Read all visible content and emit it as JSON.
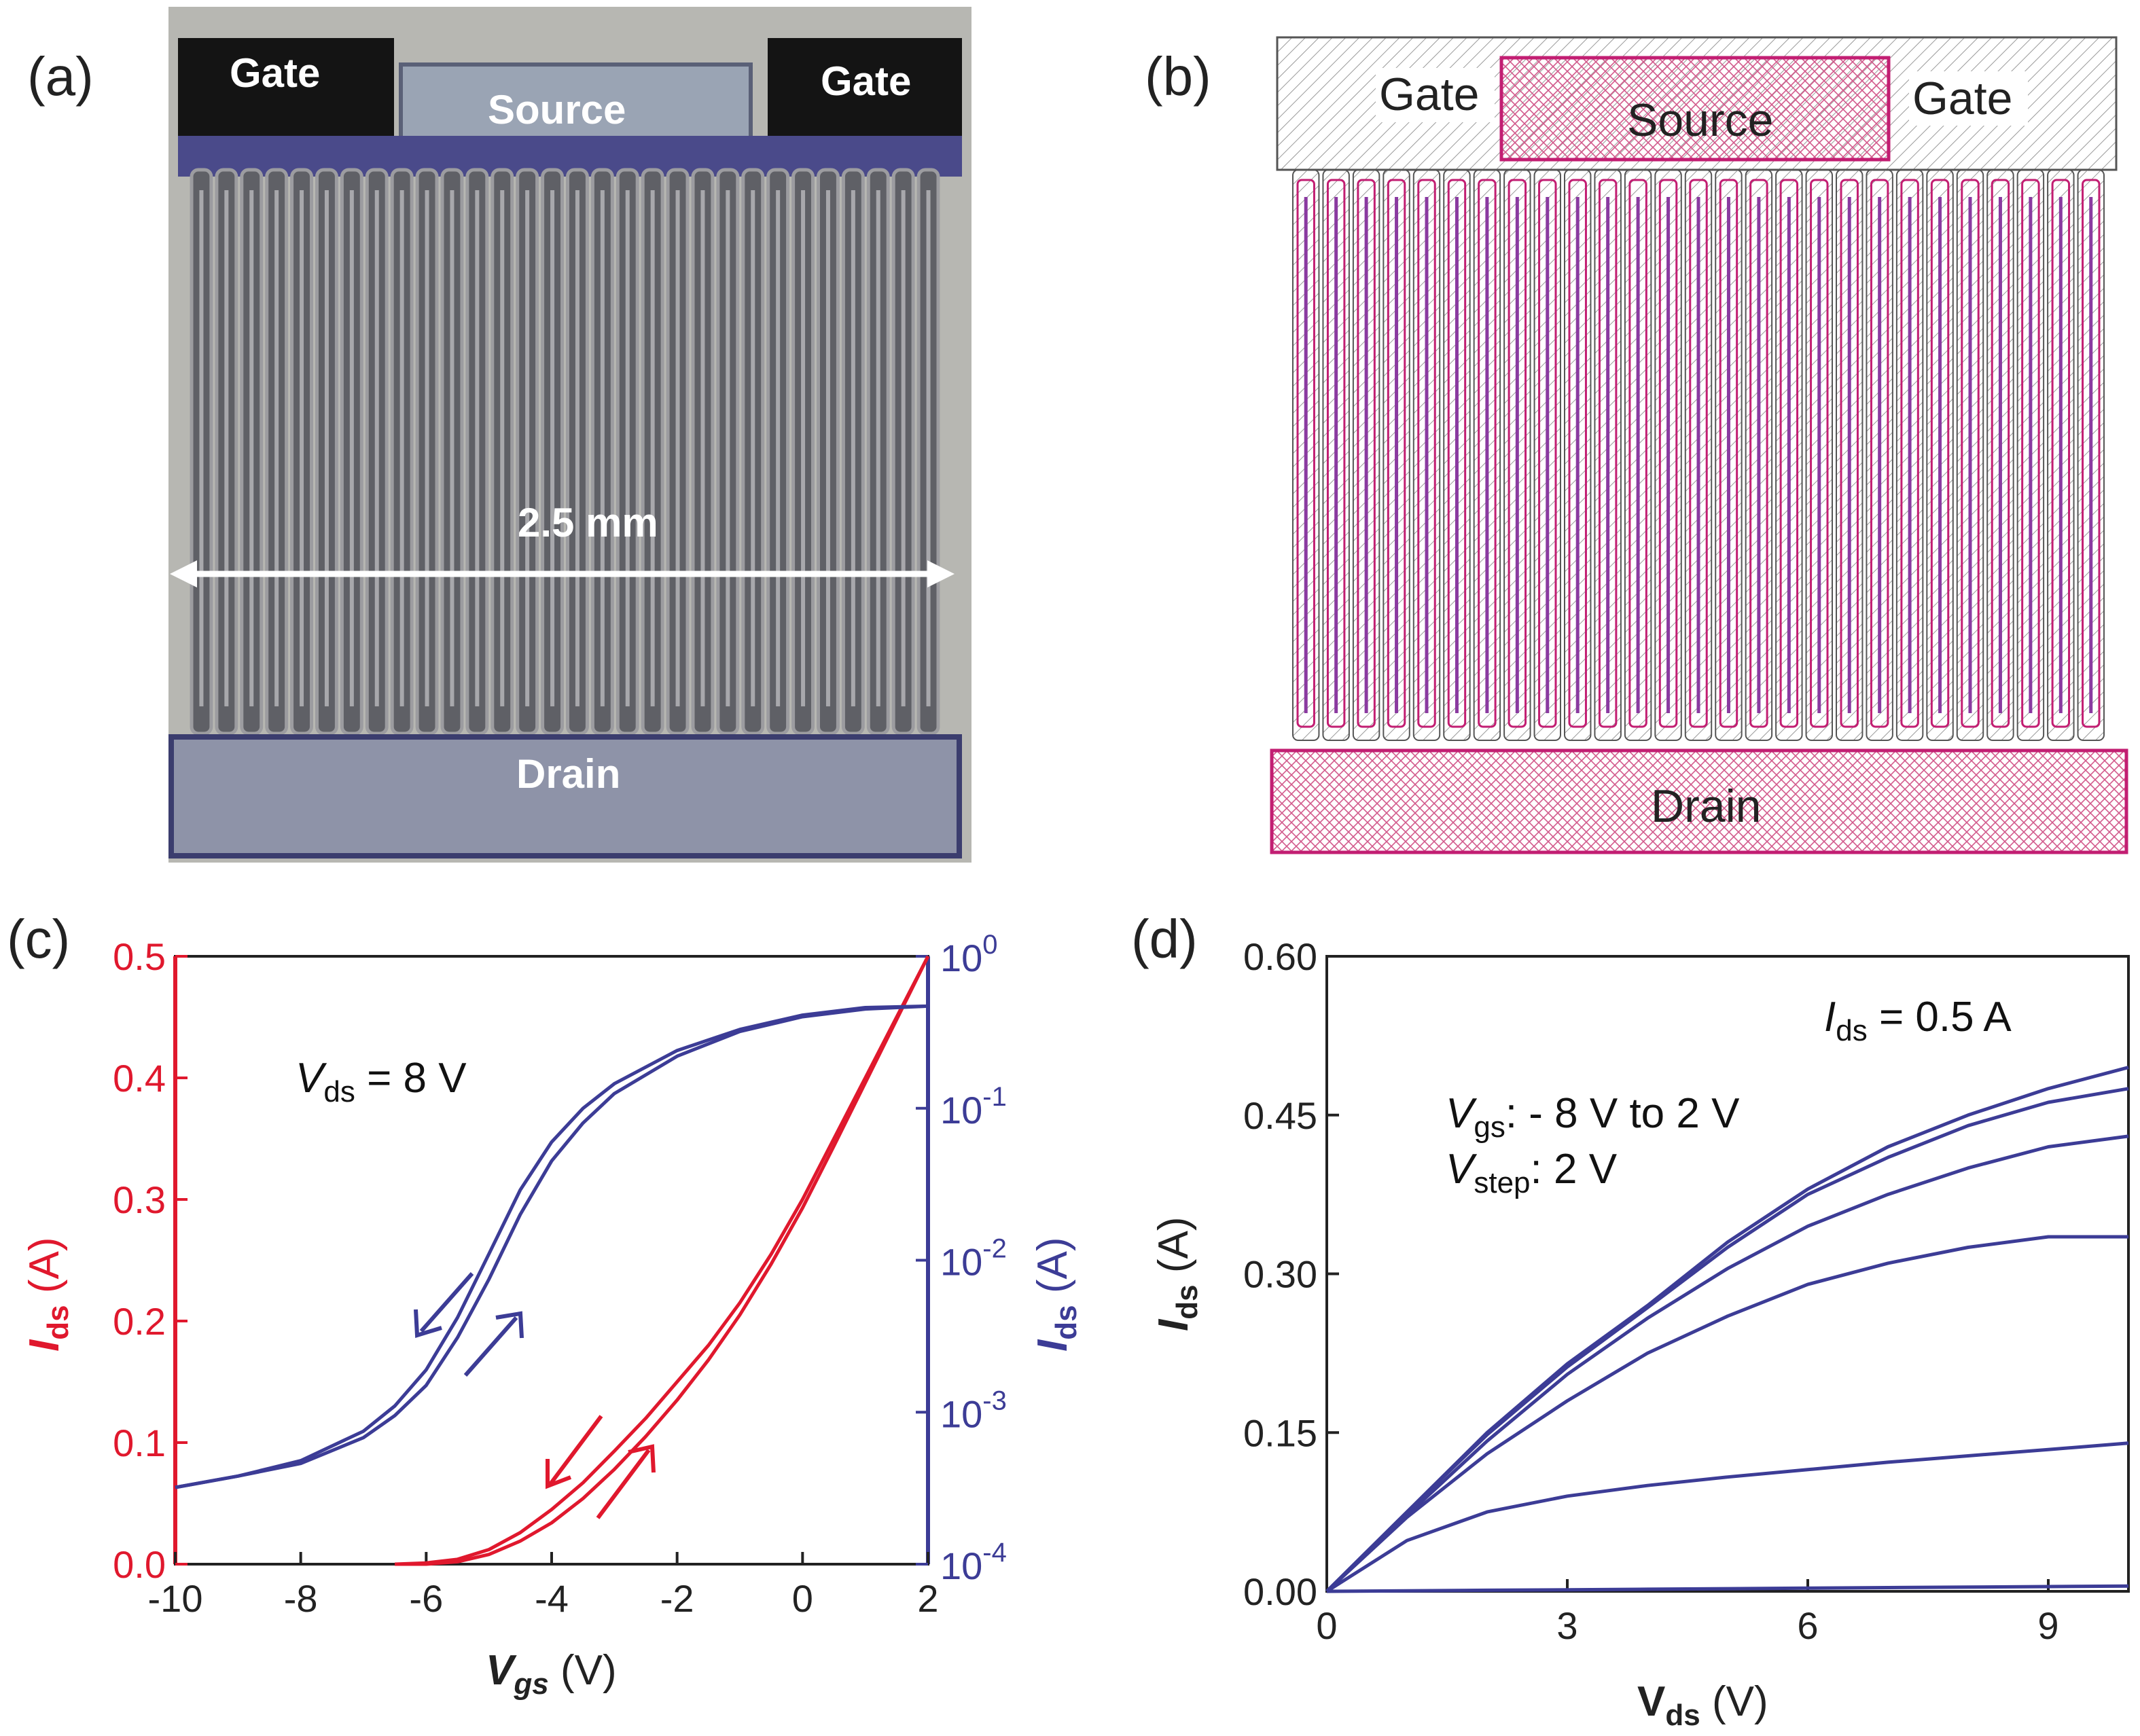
{
  "panels": {
    "a": {
      "label": "(a)",
      "gate_left": "Gate",
      "gate_right": "Gate",
      "source": "Source",
      "drain": "Drain",
      "scale": "2.5 mm"
    },
    "b": {
      "label": "(b)",
      "gate_left": "Gate",
      "gate_right": "Gate",
      "source": "Source",
      "drain": "Drain"
    },
    "c": {
      "label": "(c)",
      "annotation_var": "V",
      "annotation_sub": "ds",
      "annotation_val": " = 8 V"
    },
    "d": {
      "label": "(d)",
      "ann1_var": "I",
      "ann1_sub": "ds",
      "ann1_val": " = 0.5 A",
      "ann2_var": "V",
      "ann2_sub": "gs",
      "ann2_val": ": - 8 V to 2 V",
      "ann3_var": "V",
      "ann3_sub": "step",
      "ann3_val": ": 2 V"
    }
  },
  "colors": {
    "red": "#e0182d",
    "blue": "#3c3c96",
    "layout_magenta": "#c21e72"
  },
  "chart_data": [
    {
      "id": "c",
      "type": "line",
      "xlabel_var": "V",
      "xlabel_sub": "gs",
      "xlabel_unit": " (V)",
      "ylabel_left_var": "I",
      "ylabel_left_sub": "ds",
      "ylabel_left_unit": " (A)",
      "ylabel_right_var": "I",
      "ylabel_right_sub": "ds",
      "ylabel_right_unit": " (A)",
      "xlim": [
        -10,
        2
      ],
      "ylim_left": [
        0,
        0.5
      ],
      "ylim_right": [
        0.0001,
        1
      ],
      "right_scale": "log",
      "x_ticks": [
        "-10",
        "-8",
        "-6",
        "-4",
        "-2",
        "0",
        "2"
      ],
      "y_left_ticks": [
        "0.0",
        "0.1",
        "0.2",
        "0.3",
        "0.4",
        "0.5"
      ],
      "y_right_ticks": [
        {
          "base": "10",
          "exp": "-4"
        },
        {
          "base": "10",
          "exp": "-3"
        },
        {
          "base": "10",
          "exp": "-2"
        },
        {
          "base": "10",
          "exp": "-1"
        },
        {
          "base": "10",
          "exp": "0"
        }
      ],
      "series": [
        {
          "axis": "left",
          "color": "red",
          "x": [
            -6.5,
            -6,
            -5.5,
            -5,
            -4.5,
            -4,
            -3.5,
            -3,
            -2.5,
            -2,
            -1.5,
            -1,
            -0.5,
            0,
            0.5,
            1,
            1.5,
            2
          ],
          "y": [
            0,
            0.001,
            0.004,
            0.012,
            0.026,
            0.045,
            0.067,
            0.093,
            0.12,
            0.15,
            0.18,
            0.215,
            0.255,
            0.3,
            0.35,
            0.4,
            0.45,
            0.5
          ]
        },
        {
          "axis": "left",
          "color": "red",
          "x": [
            -6.5,
            -6,
            -5.5,
            -5,
            -4.5,
            -4,
            -3.5,
            -3,
            -2.5,
            -2,
            -1.5,
            -1,
            -0.5,
            0,
            0.5,
            1,
            1.5,
            2
          ],
          "y": [
            0,
            0,
            0.002,
            0.008,
            0.019,
            0.034,
            0.054,
            0.078,
            0.105,
            0.135,
            0.168,
            0.205,
            0.247,
            0.293,
            0.344,
            0.396,
            0.448,
            0.5
          ]
        },
        {
          "axis": "right",
          "color": "blue",
          "x": [
            -10,
            -9,
            -8,
            -7,
            -6.5,
            -6,
            -5.5,
            -5,
            -4.5,
            -4,
            -3.5,
            -3,
            -2,
            -1,
            0,
            1,
            2
          ],
          "y": [
            0.00032,
            0.00038,
            0.00048,
            0.00075,
            0.0011,
            0.0019,
            0.0042,
            0.011,
            0.029,
            0.06,
            0.1,
            0.145,
            0.24,
            0.33,
            0.41,
            0.46,
            0.47
          ]
        },
        {
          "axis": "right",
          "color": "blue",
          "x": [
            -10,
            -9,
            -8,
            -7,
            -6.5,
            -6,
            -5.5,
            -5,
            -4.5,
            -4,
            -3.5,
            -3,
            -2,
            -1,
            0,
            1,
            2
          ],
          "y": [
            0.00032,
            0.00038,
            0.00046,
            0.00068,
            0.00095,
            0.0015,
            0.0031,
            0.0075,
            0.02,
            0.045,
            0.08,
            0.125,
            0.22,
            0.32,
            0.4,
            0.45,
            0.47
          ]
        }
      ]
    },
    {
      "id": "d",
      "type": "line",
      "xlabel_var": "V",
      "xlabel_sub": "ds",
      "xlabel_unit": " (V)",
      "ylabel_var": "I",
      "ylabel_sub": "ds",
      "ylabel_unit": " (A)",
      "xlim": [
        0,
        10
      ],
      "ylim": [
        0,
        0.6
      ],
      "x_ticks": [
        "0",
        "3",
        "6",
        "9"
      ],
      "y_ticks": [
        "0.00",
        "0.15",
        "0.30",
        "0.45",
        "0.60"
      ],
      "x": [
        0,
        1,
        2,
        3,
        4,
        5,
        6,
        7,
        8,
        9,
        10
      ],
      "series": [
        {
          "vgs": 2,
          "values": [
            0,
            0.075,
            0.15,
            0.215,
            0.27,
            0.33,
            0.38,
            0.42,
            0.45,
            0.475,
            0.495
          ]
        },
        {
          "vgs": 0,
          "values": [
            0,
            0.075,
            0.148,
            0.212,
            0.268,
            0.325,
            0.375,
            0.41,
            0.44,
            0.462,
            0.475
          ]
        },
        {
          "vgs": -2,
          "values": [
            0,
            0.072,
            0.142,
            0.205,
            0.258,
            0.305,
            0.345,
            0.375,
            0.4,
            0.42,
            0.43
          ]
        },
        {
          "vgs": -4,
          "values": [
            0,
            0.07,
            0.13,
            0.18,
            0.225,
            0.26,
            0.29,
            0.31,
            0.325,
            0.335,
            0.335
          ]
        },
        {
          "vgs": -6,
          "values": [
            0,
            0.048,
            0.075,
            0.09,
            0.1,
            0.108,
            0.115,
            0.122,
            0.128,
            0.134,
            0.14
          ]
        },
        {
          "vgs": -8,
          "values": [
            0,
            0.0005,
            0.001,
            0.0015,
            0.002,
            0.0025,
            0.003,
            0.0035,
            0.004,
            0.0045,
            0.005
          ]
        }
      ]
    }
  ]
}
